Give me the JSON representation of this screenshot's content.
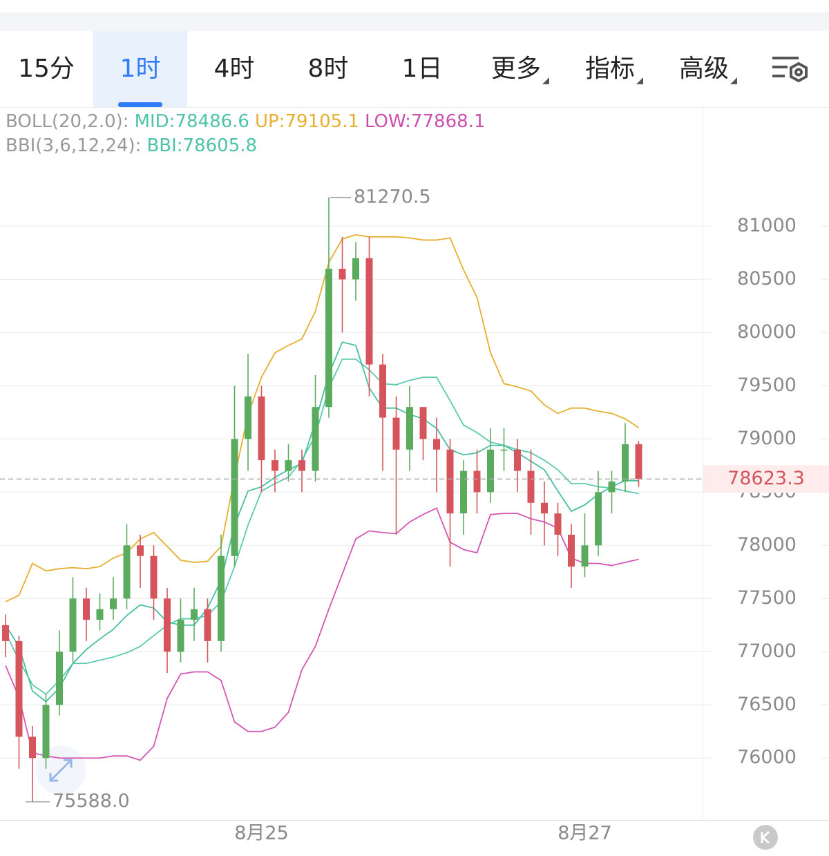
{
  "tabs": [
    {
      "label": "15分"
    },
    {
      "label": "1时",
      "active": true
    },
    {
      "label": "4时"
    },
    {
      "label": "8时"
    },
    {
      "label": "1日"
    },
    {
      "label": "更多",
      "menu": true
    },
    {
      "label": "指标",
      "menu": true
    },
    {
      "label": "高级",
      "menu": true
    }
  ],
  "chart_data": {
    "type": "candlestick",
    "indicators": [
      {
        "label": "BOLL(20,2.0):",
        "items": [
          {
            "text": "MID:78486.6",
            "color": "#4ec3a6"
          },
          {
            "text": "UP:79105.1",
            "color": "#e6af2e"
          },
          {
            "text": "LOW:77868.1",
            "color": "#cc4fae"
          }
        ]
      },
      {
        "label": "BBI(3,6,12,24):",
        "items": [
          {
            "text": "BBI:78605.8",
            "color": "#4ec3a6"
          }
        ]
      }
    ],
    "categories": [
      null,
      null,
      null,
      null,
      null,
      null,
      null,
      null,
      null,
      null,
      null,
      null,
      null,
      null,
      null,
      null,
      null,
      null,
      null,
      "8月25",
      null,
      null,
      null,
      null,
      null,
      null,
      null,
      null,
      null,
      null,
      null,
      null,
      null,
      null,
      null,
      null,
      null,
      null,
      null,
      null,
      null,
      null,
      null,
      "8月27",
      null,
      null,
      null,
      null
    ],
    "ohlc": {
      "open": [
        77250,
        77100,
        76200,
        76000,
        76500,
        77000,
        77500,
        77300,
        77400,
        77500,
        78000,
        77900,
        77500,
        77000,
        77300,
        77400,
        77100,
        77900,
        79000,
        79400,
        78800,
        78700,
        78800,
        78700,
        79300,
        80600,
        80500,
        80700,
        79700,
        79200,
        78900,
        79300,
        79000,
        78900,
        78300,
        78700,
        78500,
        78900,
        78900,
        78700,
        78400,
        78300,
        78100,
        77800,
        78000,
        78500,
        78600,
        78950
      ],
      "high": [
        77350,
        77150,
        76300,
        76600,
        77200,
        77700,
        77600,
        77550,
        77700,
        78200,
        78100,
        78000,
        77600,
        77500,
        77600,
        77500,
        78100,
        79500,
        79800,
        79500,
        78900,
        78950,
        78900,
        79600,
        81270.5,
        80900,
        80850,
        80900,
        79800,
        79400,
        79500,
        79300,
        79200,
        79000,
        78800,
        78900,
        79100,
        79100,
        79000,
        78900,
        78600,
        78400,
        78200,
        78300,
        78700,
        78700,
        79150,
        78980
      ],
      "low": [
        76950,
        75900,
        75588,
        75900,
        76400,
        76900,
        77100,
        77200,
        77300,
        77400,
        77600,
        77300,
        76800,
        76900,
        77100,
        76900,
        77000,
        77800,
        78700,
        78500,
        78500,
        78600,
        78500,
        78600,
        79200,
        80000,
        80300,
        79400,
        78700,
        78100,
        78700,
        78800,
        78500,
        77800,
        78100,
        78300,
        78400,
        78700,
        78500,
        78100,
        78000,
        77900,
        77600,
        77700,
        77900,
        78300,
        78500,
        78550
      ],
      "close": [
        77100,
        76200,
        76000,
        76500,
        77000,
        77500,
        77300,
        77400,
        77500,
        78000,
        77900,
        77500,
        77000,
        77300,
        77400,
        77100,
        77900,
        79000,
        79400,
        78800,
        78700,
        78800,
        78700,
        79300,
        80600,
        80500,
        80700,
        79700,
        79200,
        78900,
        79300,
        79000,
        78900,
        78300,
        78700,
        78500,
        78900,
        78900,
        78700,
        78400,
        78300,
        78100,
        77800,
        78000,
        78500,
        78600,
        78950,
        78623.3
      ],
      "up_color": "#5bab5f",
      "down_color": "#d6545c"
    },
    "lines": [
      {
        "color": "#e6af2e",
        "values": [
          77470,
          77530,
          77830,
          77760,
          77780,
          77790,
          77780,
          77800,
          77880,
          77930,
          78060,
          78120,
          77990,
          77860,
          77840,
          77850,
          77990,
          78640,
          79230,
          79580,
          79810,
          79880,
          79940,
          80200,
          80660,
          80880,
          80920,
          80900,
          80900,
          80900,
          80890,
          80870,
          80870,
          80890,
          80590,
          80330,
          79810,
          79520,
          79490,
          79450,
          79320,
          79240,
          79290,
          79290,
          79260,
          79240,
          79190,
          79105.1
        ]
      },
      {
        "color": "#5ccaae",
        "values": [
          77180,
          76920,
          76690,
          76600,
          76730,
          76890,
          76890,
          76920,
          76950,
          76990,
          77050,
          77150,
          77250,
          77310,
          77310,
          77340,
          77470,
          77800,
          78190,
          78510,
          78580,
          78640,
          78800,
          79030,
          79480,
          79750,
          79750,
          79650,
          79520,
          79510,
          79550,
          79580,
          79580,
          79360,
          79130,
          79060,
          78970,
          78940,
          78900,
          78870,
          78800,
          78710,
          78580,
          78580,
          78550,
          78540,
          78510,
          78486.6
        ]
      },
      {
        "color": "#d455b5",
        "values": [
          76870,
          76570,
          76050,
          76020,
          76000,
          76000,
          76000,
          76000,
          76020,
          76020,
          75980,
          76110,
          76560,
          76790,
          76810,
          76810,
          76730,
          76340,
          76250,
          76250,
          76290,
          76430,
          76830,
          77050,
          77400,
          77730,
          78060,
          78136,
          78120,
          78110,
          78220,
          78290,
          78350,
          78030,
          77960,
          77930,
          78290,
          78300,
          78300,
          78250,
          78220,
          78160,
          77880,
          77830,
          77830,
          77810,
          77840,
          77868.1
        ]
      },
      {
        "color": "#48bfa0",
        "values": [
          77250,
          77050,
          76630,
          76530,
          76660,
          76890,
          77020,
          77120,
          77210,
          77340,
          77440,
          77410,
          77280,
          77250,
          77250,
          77410,
          77670,
          78190,
          78510,
          78550,
          78640,
          78710,
          78770,
          79160,
          79610,
          79910,
          79880,
          79480,
          79290,
          79290,
          79230,
          79190,
          79100,
          78900,
          78850,
          78870,
          78940,
          78940,
          78870,
          78790,
          78710,
          78510,
          78320,
          78380,
          78480,
          78550,
          78610,
          78605.8
        ]
      }
    ],
    "high_label": "81270.5",
    "low_label": "75588.0",
    "last_price": 78623.3,
    "ylim": [
      75430,
      82120
    ],
    "yticks": [
      76000,
      76500,
      77000,
      77500,
      78000,
      78500,
      79000,
      79500,
      80000,
      80500,
      81000
    ],
    "grid": true
  }
}
